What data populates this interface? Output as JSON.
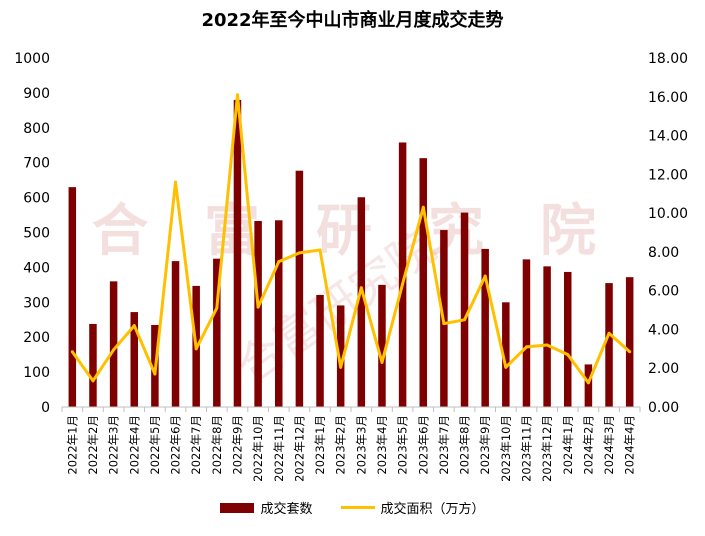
{
  "chart_data": {
    "type": "bar",
    "title": "2022年至今中山市商业月度成交走势",
    "watermark": "合富研究院",
    "categories": [
      "2022年1月",
      "2022年2月",
      "2022年3月",
      "2022年4月",
      "2022年5月",
      "2022年6月",
      "2022年7月",
      "2022年8月",
      "2022年9月",
      "2022年10月",
      "2022年11月",
      "2022年12月",
      "2023年1月",
      "2023年2月",
      "2023年3月",
      "2023年4月",
      "2023年5月",
      "2023年6月",
      "2023年7月",
      "2023年8月",
      "2023年9月",
      "2023年10月",
      "2023年11月",
      "2023年12月",
      "2024年1月",
      "2024年2月",
      "2024年3月",
      "2024年4月"
    ],
    "series": [
      {
        "name": "成交套数",
        "type": "bar",
        "axis": "left",
        "color": "#7f0000",
        "values": [
          630,
          238,
          360,
          272,
          235,
          418,
          347,
          425,
          880,
          533,
          535,
          677,
          321,
          291,
          601,
          350,
          758,
          713,
          507,
          557,
          453,
          300,
          423,
          403,
          387,
          122,
          355,
          372
        ]
      },
      {
        "name": "成交面积（万方）",
        "type": "line",
        "axis": "right",
        "color": "#ffc000",
        "values": [
          2.85,
          1.35,
          2.95,
          4.2,
          1.7,
          11.6,
          3.0,
          5.1,
          16.1,
          5.15,
          7.5,
          7.95,
          8.1,
          2.05,
          6.15,
          2.3,
          6.35,
          10.3,
          4.3,
          4.5,
          6.75,
          2.05,
          3.1,
          3.2,
          2.7,
          1.25,
          3.8,
          2.85
        ]
      }
    ],
    "ylim_left": [
      0,
      1000
    ],
    "yticks_left": [
      "0",
      "100",
      "200",
      "300",
      "400",
      "500",
      "600",
      "700",
      "800",
      "900",
      "1000"
    ],
    "ylim_right": [
      0,
      18
    ],
    "yticks_right": [
      "0.00",
      "2.00",
      "4.00",
      "6.00",
      "8.00",
      "10.00",
      "12.00",
      "14.00",
      "16.00",
      "18.00"
    ],
    "grid": false,
    "legend_position": "bottom"
  }
}
